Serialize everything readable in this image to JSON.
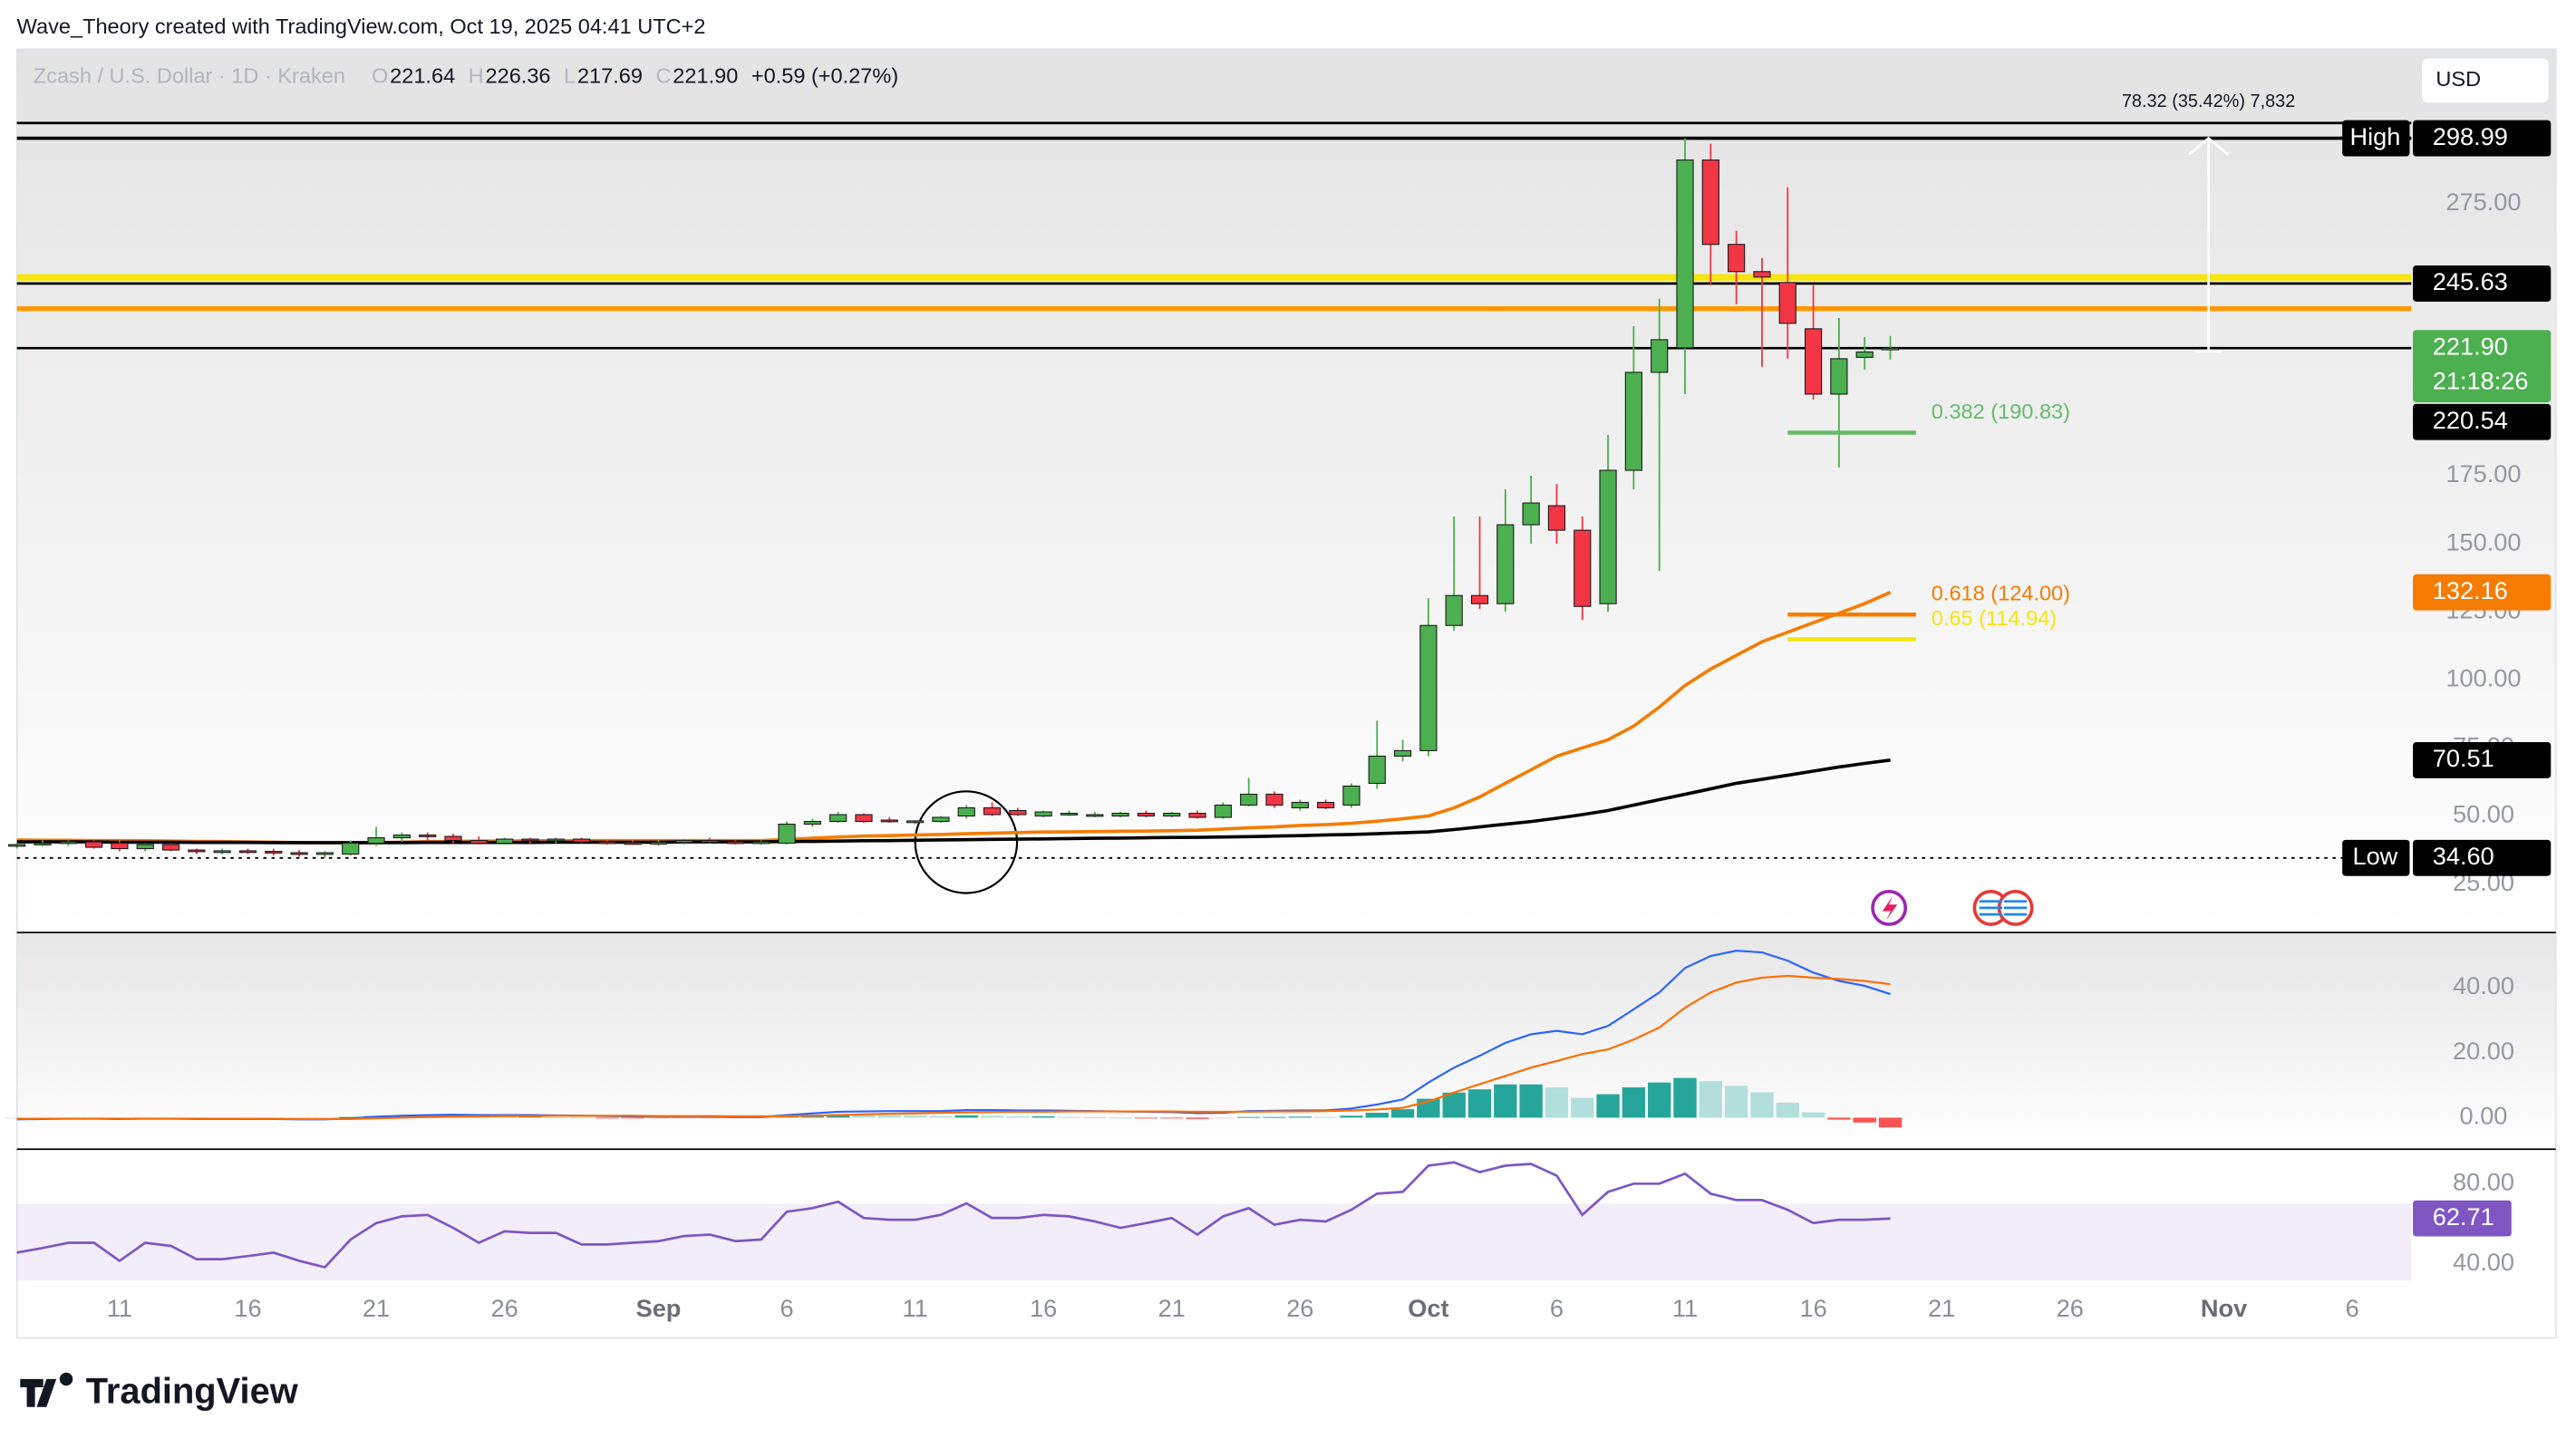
{
  "header": {
    "credit": "Wave_Theory created with TradingView.com, Oct 19, 2025 04:41 UTC+2"
  },
  "legend": {
    "symbol": "Zcash / U.S. Dollar · 1D · Kraken",
    "fields": [
      {
        "key": "O",
        "text": "221.64"
      },
      {
        "key": "H",
        "text": "226.36"
      },
      {
        "key": "L",
        "text": "217.69"
      },
      {
        "key": "C",
        "text": "221.90"
      }
    ],
    "change": "+0.59 (+0.27%)"
  },
  "currency": "USD",
  "brand": "TradingView",
  "chart_data": [
    {
      "type": "candlestick",
      "open": [
        39,
        39.5,
        40,
        40.5,
        40,
        38,
        39.5,
        37.5,
        37,
        37.2,
        37,
        36.5,
        36,
        36,
        40,
        42,
        43,
        42.5,
        41,
        40,
        41.5,
        41,
        41.5,
        40.5,
        40.2,
        40,
        40.3,
        41,
        40.5,
        40,
        40,
        47,
        48,
        50.5,
        48.5,
        48,
        48,
        50,
        53,
        52,
        50,
        51,
        50.5,
        50,
        51,
        50,
        51,
        49.5,
        54,
        58,
        53,
        55,
        54,
        62,
        72,
        74,
        120,
        131,
        128,
        157,
        164,
        155,
        128,
        177,
        213,
        222,
        291,
        260,
        250,
        246,
        229,
        205,
        218.5,
        221.64
      ],
      "high": [
        40,
        41,
        41,
        41,
        41,
        40,
        40,
        38,
        38,
        38,
        38,
        37.5,
        37,
        41,
        46,
        44,
        44,
        43.5,
        42.5,
        42,
        42,
        42,
        42,
        41,
        41,
        41,
        41.5,
        42,
        41,
        41,
        48,
        49,
        51.5,
        51,
        49.5,
        48.5,
        50,
        54,
        55,
        53,
        52,
        52,
        51.5,
        51.5,
        52,
        51.5,
        52,
        55,
        64,
        59,
        56,
        56,
        62,
        85,
        78,
        130,
        160,
        160,
        170,
        175,
        172,
        160,
        190,
        230,
        240,
        298.99,
        297,
        265,
        255,
        281,
        245,
        233,
        226,
        226.36
      ],
      "low": [
        38,
        39,
        39,
        38,
        37,
        37,
        37,
        36,
        36,
        36,
        35.5,
        35,
        34.6,
        35.5,
        39,
        40.5,
        41,
        40,
        39.5,
        39.5,
        40,
        40,
        40,
        39.5,
        39.5,
        39,
        39.5,
        40,
        39.5,
        39.5,
        39.5,
        46,
        47.5,
        47.5,
        47.5,
        47,
        47.5,
        49,
        50,
        50,
        49.5,
        50,
        49.5,
        49.5,
        49.5,
        49.5,
        49,
        49,
        53.5,
        53,
        52,
        52.5,
        53,
        60,
        70,
        72,
        118,
        126,
        125,
        150,
        150,
        122,
        125,
        170,
        140,
        205,
        245,
        238,
        215,
        218,
        203,
        178,
        214,
        217.69
      ],
      "close": [
        39.5,
        40,
        40.5,
        38.5,
        38,
        39.5,
        37.5,
        37,
        37.2,
        37,
        36.5,
        36,
        36.5,
        40,
        42,
        43,
        42.5,
        41,
        40,
        41.5,
        41,
        41.5,
        40.5,
        40.2,
        40,
        40.3,
        41,
        40.5,
        40,
        40.5,
        47,
        48,
        50.5,
        48,
        48,
        48.2,
        49.5,
        53,
        50.5,
        50.5,
        51.5,
        51,
        50.5,
        51,
        50,
        51,
        49.5,
        54,
        58,
        54,
        55,
        53,
        61,
        72,
        74,
        120,
        131,
        128,
        157,
        165,
        155,
        127,
        177,
        213,
        225,
        291,
        260,
        250,
        248,
        231,
        205,
        218,
        220.5,
        221.9
      ],
      "up_color": "#4caf50",
      "down_color": "#f23645",
      "lines": [
        {
          "color": "#f57c00",
          "values": [
            41.2,
            41.1,
            41.1,
            41,
            41,
            40.9,
            40.8,
            40.7,
            40.6,
            40.5,
            40.4,
            40.2,
            40.1,
            40.1,
            40.2,
            40.4,
            40.6,
            40.7,
            40.8,
            40.8,
            40.9,
            40.9,
            41,
            41,
            41,
            41,
            41,
            41,
            41,
            41,
            41.4,
            41.8,
            42.3,
            42.6,
            42.8,
            43,
            43.2,
            43.5,
            43.7,
            43.9,
            44.1,
            44.2,
            44.3,
            44.4,
            44.5,
            44.6,
            44.8,
            45.2,
            45.7,
            46,
            46.5,
            46.8,
            47.3,
            48.1,
            49,
            50,
            53,
            57,
            62,
            67,
            72,
            75,
            78,
            83,
            90,
            98,
            104,
            109,
            114,
            117.5,
            121,
            124.5,
            128,
            132.16
          ]
        },
        {
          "color": "#000000",
          "values": [
            40.5,
            40.5,
            40.5,
            40.5,
            40.4,
            40.4,
            40.4,
            40.3,
            40.3,
            40.3,
            40.2,
            40.2,
            40.2,
            40.2,
            40.2,
            40.2,
            40.3,
            40.3,
            40.3,
            40.3,
            40.3,
            40.4,
            40.4,
            40.4,
            40.4,
            40.4,
            40.5,
            40.5,
            40.5,
            40.5,
            40.6,
            40.7,
            40.8,
            40.9,
            41,
            41.1,
            41.2,
            41.3,
            41.4,
            41.5,
            41.6,
            41.7,
            41.8,
            41.9,
            42,
            42.1,
            42.2,
            42.3,
            42.4,
            42.6,
            42.8,
            43,
            43.2,
            43.5,
            43.8,
            44.2,
            45,
            46,
            47,
            48,
            49.2,
            50.5,
            52,
            54,
            56,
            58,
            60,
            62,
            63.5,
            65,
            66.5,
            68,
            69.3,
            70.51
          ]
        }
      ],
      "hlines": [
        {
          "value": 304.6,
          "color": "#000000",
          "width": 1.5
        },
        {
          "value": 298.99,
          "color": "#000000",
          "width": 2
        },
        {
          "value": 247.9,
          "color": "#f5e50a",
          "width": 4
        },
        {
          "value": 245.63,
          "color": "#000000",
          "width": 1.5
        },
        {
          "value": 236.4,
          "color": "#ff9800",
          "width": 3
        },
        {
          "value": 221.9,
          "color": "#000000",
          "width": 1.5
        },
        {
          "value": 34.6,
          "color": "#000000",
          "width": 1,
          "dashed": true
        }
      ],
      "fibs": [
        {
          "text": "0.382 (190.83)",
          "value": 190.83,
          "color": "#66bb6a"
        },
        {
          "text": "0.618 (124.00)",
          "value": 124.0,
          "color": "#f57c00"
        },
        {
          "text": "0.65 (114.94)",
          "value": 114.94,
          "color": "#f5e50a"
        }
      ],
      "measure": {
        "text": "78.32 (35.42%) 7,832",
        "from": 220.67,
        "to": 298.99
      },
      "price_labels": [
        {
          "value": 298.99,
          "text": "298.99",
          "tag": "High",
          "color": "#000000",
          "text_color": "#ffffff"
        },
        {
          "value": 245.63,
          "text": "245.63",
          "color": "#000000",
          "text_color": "#ffffff"
        },
        {
          "value": 221.9,
          "text": "221.90",
          "countdown": "21:18:26",
          "color": "#4caf50",
          "text_color": "#ffffff"
        },
        {
          "value": 220.54,
          "text": "220.54",
          "color": "#000000",
          "text_color": "#ffffff"
        },
        {
          "value": 132.16,
          "text": "132.16",
          "color": "#f57c00",
          "text_color": "#ffffff"
        },
        {
          "value": 70.51,
          "text": "70.51",
          "color": "#000000",
          "text_color": "#ffffff"
        },
        {
          "value": 34.6,
          "text": "34.60",
          "tag": "Low",
          "color": "#000000",
          "text_color": "#ffffff"
        }
      ],
      "xlim": [
        0,
        93.3
      ],
      "ylim": [
        7.8,
        331.7
      ],
      "yticks": [
        {
          "value": 25,
          "label": "25.00"
        },
        {
          "value": 50,
          "label": "50.00"
        },
        {
          "value": 75,
          "label": "75.00"
        },
        {
          "value": 100,
          "label": "100.00"
        },
        {
          "value": 125,
          "label": "125.00"
        },
        {
          "value": 150,
          "label": "150.00"
        },
        {
          "value": 175,
          "label": "175.00"
        },
        {
          "value": 275,
          "label": "275.00"
        }
      ]
    },
    {
      "type": "macd",
      "series": [
        {
          "color": "#2962ff",
          "values": [
            -0.5,
            -0.4,
            -0.3,
            -0.3,
            -0.4,
            -0.3,
            -0.3,
            -0.4,
            -0.4,
            -0.4,
            -0.4,
            -0.5,
            -0.5,
            -0.2,
            0.3,
            0.6,
            0.8,
            0.9,
            0.8,
            0.8,
            0.8,
            0.7,
            0.6,
            0.5,
            0.4,
            0.3,
            0.3,
            0.3,
            0.2,
            0.2,
            0.8,
            1.3,
            1.8,
            1.9,
            2,
            2,
            2,
            2.3,
            2.3,
            2.2,
            2.2,
            2.1,
            2,
            1.9,
            1.8,
            1.7,
            1.4,
            1.5,
            2,
            2.1,
            2.2,
            2.2,
            2.8,
            4,
            5.6,
            10.8,
            15.4,
            19,
            23,
            25.6,
            26.7,
            25.6,
            28.2,
            33.3,
            38.5,
            46,
            49.7,
            51.3,
            50.8,
            48.2,
            44.6,
            42,
            40.5,
            38
          ]
        },
        {
          "color": "#ff6d00",
          "values": [
            -0.3,
            -0.3,
            -0.3,
            -0.3,
            -0.3,
            -0.3,
            -0.3,
            -0.3,
            -0.3,
            -0.3,
            -0.3,
            -0.4,
            -0.4,
            -0.4,
            -0.2,
            0,
            0.2,
            0.3,
            0.4,
            0.5,
            0.5,
            0.6,
            0.6,
            0.6,
            0.6,
            0.5,
            0.5,
            0.5,
            0.4,
            0.4,
            0.5,
            0.6,
            0.8,
            1,
            1.2,
            1.3,
            1.5,
            1.6,
            1.7,
            1.8,
            1.8,
            1.9,
            1.9,
            1.9,
            1.9,
            1.9,
            1.8,
            1.8,
            1.8,
            1.9,
            1.9,
            2,
            2.2,
            2.5,
            3,
            5,
            7.7,
            10.3,
            12.8,
            15.4,
            17.4,
            19.5,
            21,
            24,
            27.7,
            33.8,
            38.5,
            41.5,
            43,
            43.6,
            43,
            42.6,
            42,
            41
          ]
        }
      ],
      "histogram": {
        "values": [
          -0.2,
          -0.1,
          0,
          0,
          -0.1,
          0,
          0,
          -0.1,
          -0.1,
          -0.1,
          -0.1,
          -0.1,
          -0.1,
          0.2,
          0.5,
          0.6,
          0.6,
          0.6,
          0.4,
          0.3,
          0.3,
          0.1,
          0,
          -0.1,
          -0.2,
          -0.2,
          -0.2,
          -0.2,
          -0.2,
          -0.2,
          0.3,
          0.7,
          1,
          0.9,
          0.8,
          0.7,
          0.5,
          0.7,
          0.6,
          0.4,
          0.4,
          0.2,
          0.1,
          0,
          -0.1,
          -0.2,
          -0.4,
          -0.3,
          0.2,
          0.2,
          0.3,
          0.2,
          0.6,
          1.5,
          2.6,
          5.8,
          7.7,
          8.7,
          10.2,
          10.2,
          9.3,
          6.1,
          7.2,
          9.3,
          10.8,
          12.2,
          11.2,
          9.8,
          7.8,
          4.6,
          1.6,
          -0.6,
          -1.5,
          -3
        ],
        "colors": [
          "#26a69a",
          "#b2dfdb",
          "#ffcdd2",
          "#ff5252"
        ]
      },
      "xlim": [
        0,
        93.3
      ],
      "ylim": [
        -9.7,
        56.9
      ],
      "yticks": [
        {
          "value": 0,
          "label": "0.00"
        },
        {
          "value": 20,
          "label": "20.00"
        },
        {
          "value": 40,
          "label": "40.00"
        }
      ]
    },
    {
      "type": "line",
      "series": [
        {
          "color": "#7e57c2",
          "values": [
            45.7,
            48,
            50.6,
            50.6,
            41.6,
            50.6,
            49,
            42.4,
            42.4,
            44,
            45.7,
            41.6,
            38.4,
            52.2,
            60.4,
            63.7,
            64.5,
            58,
            50.6,
            56.3,
            55.5,
            55.5,
            49.8,
            49.8,
            50.6,
            51.4,
            53.9,
            54.7,
            51.4,
            52.2,
            66,
            67.8,
            71,
            62.9,
            62,
            62,
            64.5,
            70.2,
            62.9,
            62.9,
            64.5,
            63.7,
            61.2,
            58,
            60.4,
            62.9,
            54.7,
            63.7,
            67.8,
            59.6,
            62,
            61.2,
            67,
            75,
            75.9,
            89,
            90.6,
            85.7,
            89,
            89.8,
            84,
            64.5,
            75.9,
            80,
            80,
            85,
            75,
            71.8,
            71.8,
            67,
            60.4,
            62,
            62,
            62.71
          ]
        }
      ],
      "band": [
        30,
        70
      ],
      "band_color": "#7e57c2",
      "last_label": {
        "value": 62.71,
        "text": "62.71",
        "color": "#7e57c2"
      },
      "xlim": [
        0,
        93.3
      ],
      "ylim": [
        31.8,
        95.5
      ],
      "yticks": [
        {
          "value": 40,
          "label": "40.00"
        },
        {
          "value": 80,
          "label": "80.00"
        }
      ],
      "xticks": [
        {
          "value": 4,
          "label": "11"
        },
        {
          "value": 9,
          "label": "16"
        },
        {
          "value": 14,
          "label": "21"
        },
        {
          "value": 19,
          "label": "26"
        },
        {
          "value": 25,
          "label": "Sep"
        },
        {
          "value": 30,
          "label": "6"
        },
        {
          "value": 35,
          "label": "11"
        },
        {
          "value": 40,
          "label": "16"
        },
        {
          "value": 45,
          "label": "21"
        },
        {
          "value": 50,
          "label": "26"
        },
        {
          "value": 55,
          "label": "Oct"
        },
        {
          "value": 60,
          "label": "6"
        },
        {
          "value": 65,
          "label": "11"
        },
        {
          "value": 70,
          "label": "16"
        },
        {
          "value": 75,
          "label": "21"
        },
        {
          "value": 80,
          "label": "26"
        },
        {
          "value": 86,
          "label": "Nov"
        },
        {
          "value": 91,
          "label": "6"
        }
      ]
    }
  ]
}
